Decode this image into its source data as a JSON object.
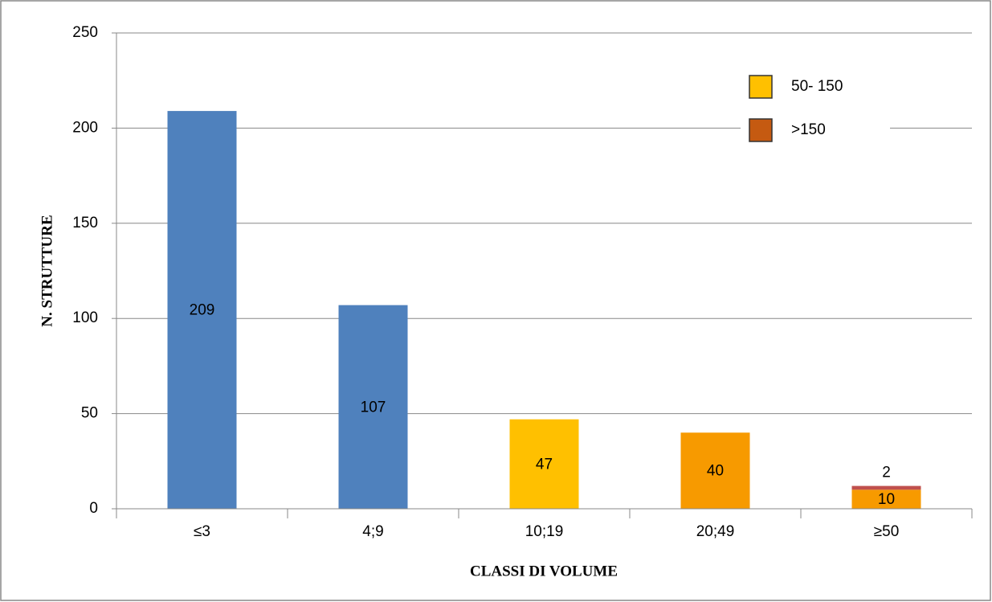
{
  "chart_data": {
    "type": "stacked-bar",
    "x_label": "CLASSI DI VOLUME",
    "y_label": "N. STRUTTURE",
    "categories": [
      "≤3",
      "4;9",
      "10;19",
      "20;49",
      "≥50"
    ],
    "series": [
      {
        "name": "50- 150",
        "color": "#FFC000",
        "bar_colors": [
          "#4F81BD",
          "#4F81BD",
          "#FFC000",
          "#F79A00",
          "#F79A00"
        ],
        "values": [
          209,
          107,
          47,
          40,
          10
        ]
      },
      {
        "name": ">150",
        "color": "#C55A11",
        "bar_colors": [
          null,
          null,
          null,
          null,
          "#C0504D"
        ],
        "values": [
          null,
          null,
          null,
          null,
          2
        ]
      }
    ],
    "ylim": [
      0,
      250
    ],
    "yticks": [
      0,
      50,
      100,
      150,
      200,
      250
    ],
    "grid": true,
    "legend": "top-right"
  }
}
